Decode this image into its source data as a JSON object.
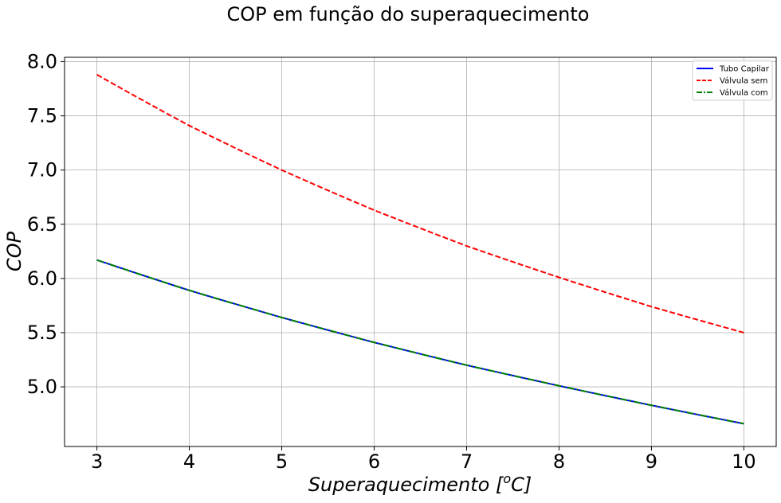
{
  "chart_data": {
    "type": "line",
    "title": "COP em função do superaquecimento",
    "xlabel_main": "Superaquecimento [",
    "xlabel_sup": "o",
    "xlabel_unit": "C]",
    "ylabel": "COP",
    "xlim": [
      2.65,
      10.35
    ],
    "ylim": [
      4.45,
      8.04
    ],
    "xticks": [
      3,
      4,
      5,
      6,
      7,
      8,
      9,
      10
    ],
    "xtick_labels": [
      "3",
      "4",
      "5",
      "6",
      "7",
      "8",
      "9",
      "10"
    ],
    "yticks": [
      5.0,
      5.5,
      6.0,
      6.5,
      7.0,
      7.5,
      8.0
    ],
    "ytick_labels": [
      "5.0",
      "5.5",
      "6.0",
      "6.5",
      "7.0",
      "7.5",
      "8.0"
    ],
    "grid": true,
    "legend_position": "top-right",
    "x": [
      3,
      4,
      5,
      6,
      7,
      8,
      9,
      10
    ],
    "series": [
      {
        "name": "Tubo Capilar",
        "color": "#0000ff",
        "style": "solid",
        "values": [
          6.17,
          5.89,
          5.64,
          5.41,
          5.2,
          5.01,
          4.83,
          4.66
        ]
      },
      {
        "name": "Válvula sem",
        "color": "#ff0000",
        "style": "dashed",
        "values": [
          7.88,
          7.41,
          7.0,
          6.63,
          6.3,
          6.01,
          5.74,
          5.5
        ]
      },
      {
        "name": "Válvula com",
        "color": "#008000",
        "style": "dashdot",
        "values": [
          6.17,
          5.89,
          5.64,
          5.41,
          5.2,
          5.01,
          4.83,
          4.66
        ]
      }
    ]
  }
}
